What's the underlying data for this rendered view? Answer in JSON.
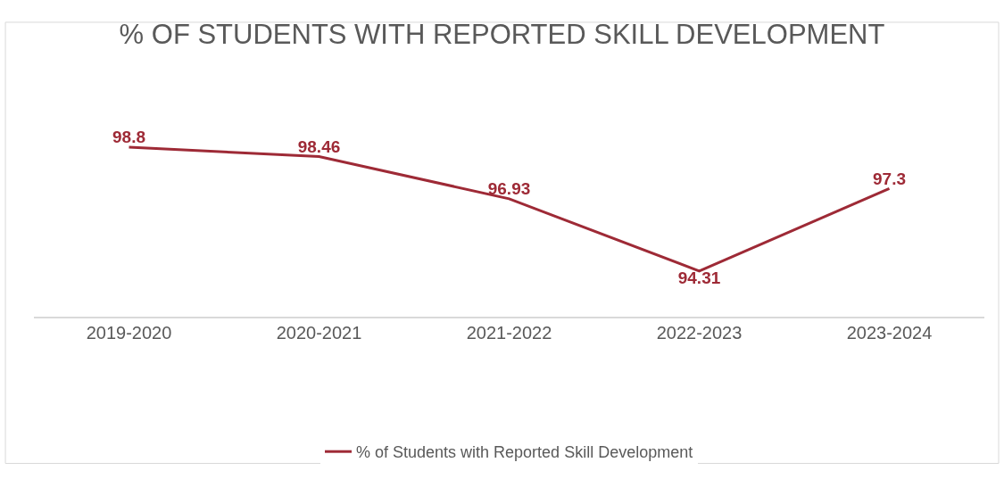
{
  "chart_data": {
    "type": "line",
    "title": "% OF STUDENTS WITH REPORTED SKILL DEVELOPMENT",
    "categories": [
      "2019-2020",
      "2020-2021",
      "2021-2022",
      "2022-2023",
      "2023-2024"
    ],
    "series": [
      {
        "name": "% of Students with Reported Skill Development",
        "color": "#9e2a36",
        "values": [
          98.8,
          98.46,
          96.93,
          94.31,
          97.3
        ]
      }
    ],
    "tick_labels": "x",
    "legend": "bottom",
    "data_labels": true,
    "marker": "none",
    "line_style": "solid"
  }
}
